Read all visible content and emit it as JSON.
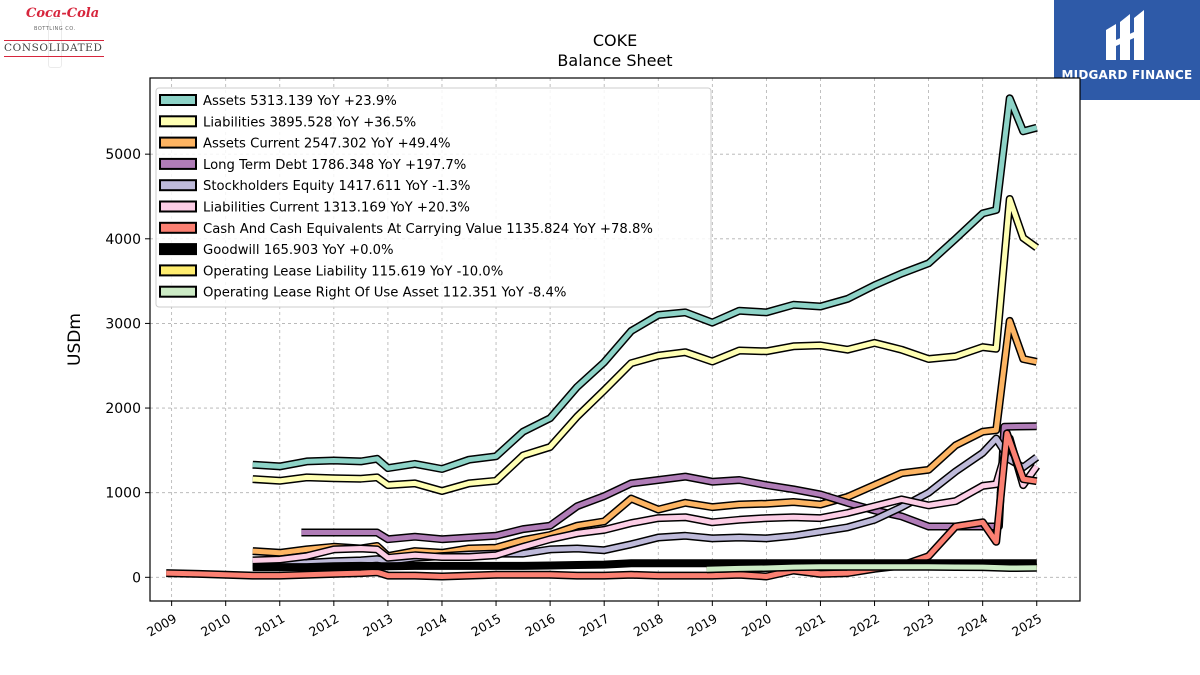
{
  "logos": {
    "left_script": "Coca-Cola",
    "left_small": "BOTTLING CO.",
    "left_main": "CONSOLIDATED",
    "right_text": "MIDGARD FINANCE"
  },
  "chart_data": {
    "type": "line",
    "title": "COKE",
    "subtitle": "Balance  Sheet",
    "xlabel": "",
    "ylabel": "USDm",
    "xlim": [
      2008.6,
      2025.8
    ],
    "ylim": [
      -280,
      5900
    ],
    "x_ticks": [
      "2009",
      "2010",
      "2011",
      "2012",
      "2013",
      "2014",
      "2015",
      "2016",
      "2017",
      "2018",
      "2019",
      "2020",
      "2021",
      "2022",
      "2023",
      "2024",
      "2025"
    ],
    "y_ticks": [
      0,
      1000,
      2000,
      3000,
      4000,
      5000
    ],
    "grid": true,
    "legend_position": "top-left",
    "series": [
      {
        "name": "Assets  5313.139 YoY +23.9%",
        "color": "#8dd3c7",
        "points": [
          [
            2010.5,
            1330
          ],
          [
            2011,
            1310
          ],
          [
            2011.5,
            1370
          ],
          [
            2012,
            1380
          ],
          [
            2012.5,
            1370
          ],
          [
            2012.8,
            1400
          ],
          [
            2013,
            1290
          ],
          [
            2013.5,
            1340
          ],
          [
            2014,
            1280
          ],
          [
            2014.5,
            1390
          ],
          [
            2015,
            1430
          ],
          [
            2015.5,
            1720
          ],
          [
            2016,
            1880
          ],
          [
            2016.5,
            2250
          ],
          [
            2017,
            2540
          ],
          [
            2017.5,
            2910
          ],
          [
            2018,
            3100
          ],
          [
            2018.5,
            3130
          ],
          [
            2019,
            3010
          ],
          [
            2019.5,
            3150
          ],
          [
            2020,
            3130
          ],
          [
            2020.5,
            3220
          ],
          [
            2021,
            3200
          ],
          [
            2021.5,
            3290
          ],
          [
            2022,
            3450
          ],
          [
            2022.5,
            3590
          ],
          [
            2023,
            3710
          ],
          [
            2023.5,
            4000
          ],
          [
            2024,
            4300
          ],
          [
            2024.25,
            4340
          ],
          [
            2024.5,
            5660
          ],
          [
            2024.75,
            5270
          ],
          [
            2025,
            5313
          ]
        ]
      },
      {
        "name": "Liabilities  3895.528 YoY +36.5%",
        "color": "#ffffb3",
        "points": [
          [
            2010.5,
            1160
          ],
          [
            2011,
            1140
          ],
          [
            2011.5,
            1180
          ],
          [
            2012,
            1170
          ],
          [
            2012.5,
            1165
          ],
          [
            2012.8,
            1180
          ],
          [
            2013,
            1090
          ],
          [
            2013.5,
            1110
          ],
          [
            2014,
            1020
          ],
          [
            2014.5,
            1110
          ],
          [
            2015,
            1140
          ],
          [
            2015.5,
            1440
          ],
          [
            2016,
            1540
          ],
          [
            2016.5,
            1900
          ],
          [
            2017,
            2210
          ],
          [
            2017.5,
            2530
          ],
          [
            2018,
            2620
          ],
          [
            2018.5,
            2660
          ],
          [
            2019,
            2550
          ],
          [
            2019.5,
            2680
          ],
          [
            2020,
            2670
          ],
          [
            2020.5,
            2730
          ],
          [
            2021,
            2740
          ],
          [
            2021.5,
            2690
          ],
          [
            2022,
            2770
          ],
          [
            2022.5,
            2690
          ],
          [
            2023,
            2580
          ],
          [
            2023.5,
            2610
          ],
          [
            2024,
            2720
          ],
          [
            2024.25,
            2700
          ],
          [
            2024.5,
            4470
          ],
          [
            2024.75,
            4010
          ],
          [
            2025,
            3896
          ]
        ]
      },
      {
        "name": "Assets Current  2547.302 YoY +49.4%",
        "color": "#fdb462",
        "points": [
          [
            2010.5,
            310
          ],
          [
            2011,
            290
          ],
          [
            2011.5,
            330
          ],
          [
            2012,
            360
          ],
          [
            2012.5,
            340
          ],
          [
            2012.8,
            370
          ],
          [
            2013,
            250
          ],
          [
            2013.5,
            310
          ],
          [
            2014,
            290
          ],
          [
            2014.5,
            340
          ],
          [
            2015,
            350
          ],
          [
            2015.5,
            440
          ],
          [
            2016,
            500
          ],
          [
            2016.5,
            610
          ],
          [
            2017,
            660
          ],
          [
            2017.5,
            930
          ],
          [
            2018,
            800
          ],
          [
            2018.5,
            880
          ],
          [
            2019,
            830
          ],
          [
            2019.5,
            860
          ],
          [
            2020,
            870
          ],
          [
            2020.5,
            890
          ],
          [
            2021,
            860
          ],
          [
            2021.5,
            950
          ],
          [
            2022,
            1090
          ],
          [
            2022.5,
            1230
          ],
          [
            2023,
            1270
          ],
          [
            2023.5,
            1560
          ],
          [
            2024,
            1720
          ],
          [
            2024.25,
            1740
          ],
          [
            2024.5,
            3030
          ],
          [
            2024.75,
            2580
          ],
          [
            2025,
            2547
          ]
        ]
      },
      {
        "name": "Long Term Debt  1786.348 YoY +197.7%",
        "color": "#b07cb7",
        "points": [
          [
            2011.4,
            530
          ],
          [
            2012,
            530
          ],
          [
            2012.5,
            530
          ],
          [
            2012.8,
            530
          ],
          [
            2013,
            450
          ],
          [
            2013.5,
            480
          ],
          [
            2014,
            450
          ],
          [
            2014.5,
            470
          ],
          [
            2015,
            490
          ],
          [
            2015.5,
            570
          ],
          [
            2016,
            610
          ],
          [
            2016.5,
            840
          ],
          [
            2017,
            960
          ],
          [
            2017.5,
            1110
          ],
          [
            2018,
            1150
          ],
          [
            2018.5,
            1190
          ],
          [
            2019,
            1130
          ],
          [
            2019.5,
            1150
          ],
          [
            2020,
            1090
          ],
          [
            2020.5,
            1040
          ],
          [
            2021,
            980
          ],
          [
            2021.5,
            880
          ],
          [
            2022,
            790
          ],
          [
            2022.5,
            720
          ],
          [
            2023,
            600
          ],
          [
            2023.5,
            600
          ],
          [
            2024,
            600
          ],
          [
            2024.3,
            600
          ],
          [
            2024.4,
            1780
          ],
          [
            2025,
            1786
          ]
        ]
      },
      {
        "name": "Stockholders Equity  1417.611 YoY -1.3%",
        "color": "#bebada",
        "points": [
          [
            2010.5,
            150
          ],
          [
            2011,
            160
          ],
          [
            2011.5,
            170
          ],
          [
            2012,
            190
          ],
          [
            2012.5,
            200
          ],
          [
            2012.8,
            215
          ],
          [
            2013,
            190
          ],
          [
            2013.5,
            230
          ],
          [
            2014,
            250
          ],
          [
            2014.5,
            270
          ],
          [
            2015,
            280
          ],
          [
            2015.5,
            280
          ],
          [
            2016,
            330
          ],
          [
            2016.5,
            340
          ],
          [
            2017,
            320
          ],
          [
            2017.5,
            390
          ],
          [
            2018,
            470
          ],
          [
            2018.5,
            490
          ],
          [
            2019,
            460
          ],
          [
            2019.5,
            470
          ],
          [
            2020,
            460
          ],
          [
            2020.5,
            490
          ],
          [
            2021,
            540
          ],
          [
            2021.5,
            590
          ],
          [
            2022,
            680
          ],
          [
            2022.5,
            830
          ],
          [
            2023,
            1000
          ],
          [
            2023.5,
            1250
          ],
          [
            2024,
            1470
          ],
          [
            2024.25,
            1640
          ],
          [
            2024.5,
            1390
          ],
          [
            2024.75,
            1300
          ],
          [
            2025,
            1418
          ]
        ]
      },
      {
        "name": "Liabilities Current  1313.169 YoY +20.3%",
        "color": "#fccde5",
        "points": [
          [
            2010.5,
            200
          ],
          [
            2011,
            210
          ],
          [
            2011.5,
            250
          ],
          [
            2012,
            330
          ],
          [
            2012.5,
            340
          ],
          [
            2012.8,
            330
          ],
          [
            2013,
            230
          ],
          [
            2013.5,
            260
          ],
          [
            2014,
            240
          ],
          [
            2014.5,
            240
          ],
          [
            2015,
            260
          ],
          [
            2015.5,
            360
          ],
          [
            2016,
            450
          ],
          [
            2016.5,
            520
          ],
          [
            2017,
            560
          ],
          [
            2017.5,
            640
          ],
          [
            2018,
            700
          ],
          [
            2018.5,
            710
          ],
          [
            2019,
            650
          ],
          [
            2019.5,
            680
          ],
          [
            2020,
            700
          ],
          [
            2020.5,
            710
          ],
          [
            2021,
            700
          ],
          [
            2021.5,
            760
          ],
          [
            2022,
            840
          ],
          [
            2022.5,
            920
          ],
          [
            2023,
            850
          ],
          [
            2023.5,
            900
          ],
          [
            2024,
            1080
          ],
          [
            2024.25,
            1100
          ],
          [
            2024.5,
            1640
          ],
          [
            2024.75,
            1090
          ],
          [
            2025,
            1313
          ]
        ]
      },
      {
        "name": "Cash And Cash Equivalents At Carrying Value  1135.824 YoY +78.8%",
        "color": "#fb8072",
        "points": [
          [
            2008.9,
            50
          ],
          [
            2009.5,
            40
          ],
          [
            2010,
            30
          ],
          [
            2010.5,
            20
          ],
          [
            2011,
            20
          ],
          [
            2011.5,
            30
          ],
          [
            2012,
            40
          ],
          [
            2012.5,
            50
          ],
          [
            2012.8,
            60
          ],
          [
            2013,
            20
          ],
          [
            2013.5,
            20
          ],
          [
            2014,
            10
          ],
          [
            2014.5,
            20
          ],
          [
            2015,
            30
          ],
          [
            2015.5,
            30
          ],
          [
            2016,
            30
          ],
          [
            2016.5,
            20
          ],
          [
            2017,
            20
          ],
          [
            2017.5,
            30
          ],
          [
            2018,
            20
          ],
          [
            2018.5,
            20
          ],
          [
            2019,
            20
          ],
          [
            2019.5,
            30
          ],
          [
            2020,
            10
          ],
          [
            2020.5,
            80
          ],
          [
            2021,
            40
          ],
          [
            2021.5,
            50
          ],
          [
            2022,
            100
          ],
          [
            2022.5,
            140
          ],
          [
            2023,
            250
          ],
          [
            2023.5,
            600
          ],
          [
            2024,
            650
          ],
          [
            2024.25,
            420
          ],
          [
            2024.45,
            1700
          ],
          [
            2024.75,
            1160
          ],
          [
            2025,
            1136
          ]
        ]
      },
      {
        "name": "Goodwill  165.903 YoY +0.0%",
        "color": "#000000",
        "points": [
          [
            2010.5,
            120
          ],
          [
            2011,
            120
          ],
          [
            2011.5,
            120
          ],
          [
            2012,
            130
          ],
          [
            2012.5,
            135
          ],
          [
            2013,
            130
          ],
          [
            2013.5,
            135
          ],
          [
            2014,
            135
          ],
          [
            2014.5,
            135
          ],
          [
            2015,
            135
          ],
          [
            2015.5,
            135
          ],
          [
            2016,
            140
          ],
          [
            2016.5,
            145
          ],
          [
            2017,
            150
          ],
          [
            2017.5,
            165
          ],
          [
            2018,
            166
          ],
          [
            2018.5,
            166
          ],
          [
            2019,
            166
          ],
          [
            2019.5,
            166
          ],
          [
            2020,
            166
          ],
          [
            2020.5,
            166
          ],
          [
            2021,
            166
          ],
          [
            2021.5,
            166
          ],
          [
            2022,
            166
          ],
          [
            2022.5,
            166
          ],
          [
            2023,
            166
          ],
          [
            2023.5,
            166
          ],
          [
            2024,
            166
          ],
          [
            2024.5,
            166
          ],
          [
            2025,
            166
          ]
        ]
      },
      {
        "name": "Operating Lease Liability  115.619 YoY -10.0%",
        "color": "#ffed6f",
        "points": [
          [
            2018.9,
            100
          ],
          [
            2019.5,
            110
          ],
          [
            2020,
            115
          ],
          [
            2020.5,
            125
          ],
          [
            2021,
            130
          ],
          [
            2021.5,
            130
          ],
          [
            2022,
            130
          ],
          [
            2022.5,
            130
          ],
          [
            2023,
            130
          ],
          [
            2023.5,
            128
          ],
          [
            2024,
            125
          ],
          [
            2024.5,
            122
          ],
          [
            2025,
            116
          ]
        ]
      },
      {
        "name": "Operating Lease Right Of Use Asset  112.351 YoY -8.4%",
        "color": "#ccebc5",
        "points": [
          [
            2018.9,
            95
          ],
          [
            2019.5,
            105
          ],
          [
            2020,
            110
          ],
          [
            2020.5,
            120
          ],
          [
            2021,
            125
          ],
          [
            2021.5,
            125
          ],
          [
            2022,
            125
          ],
          [
            2022.5,
            125
          ],
          [
            2023,
            125
          ],
          [
            2023.5,
            122
          ],
          [
            2024,
            120
          ],
          [
            2024.5,
            110
          ],
          [
            2025,
            112
          ]
        ]
      }
    ]
  }
}
